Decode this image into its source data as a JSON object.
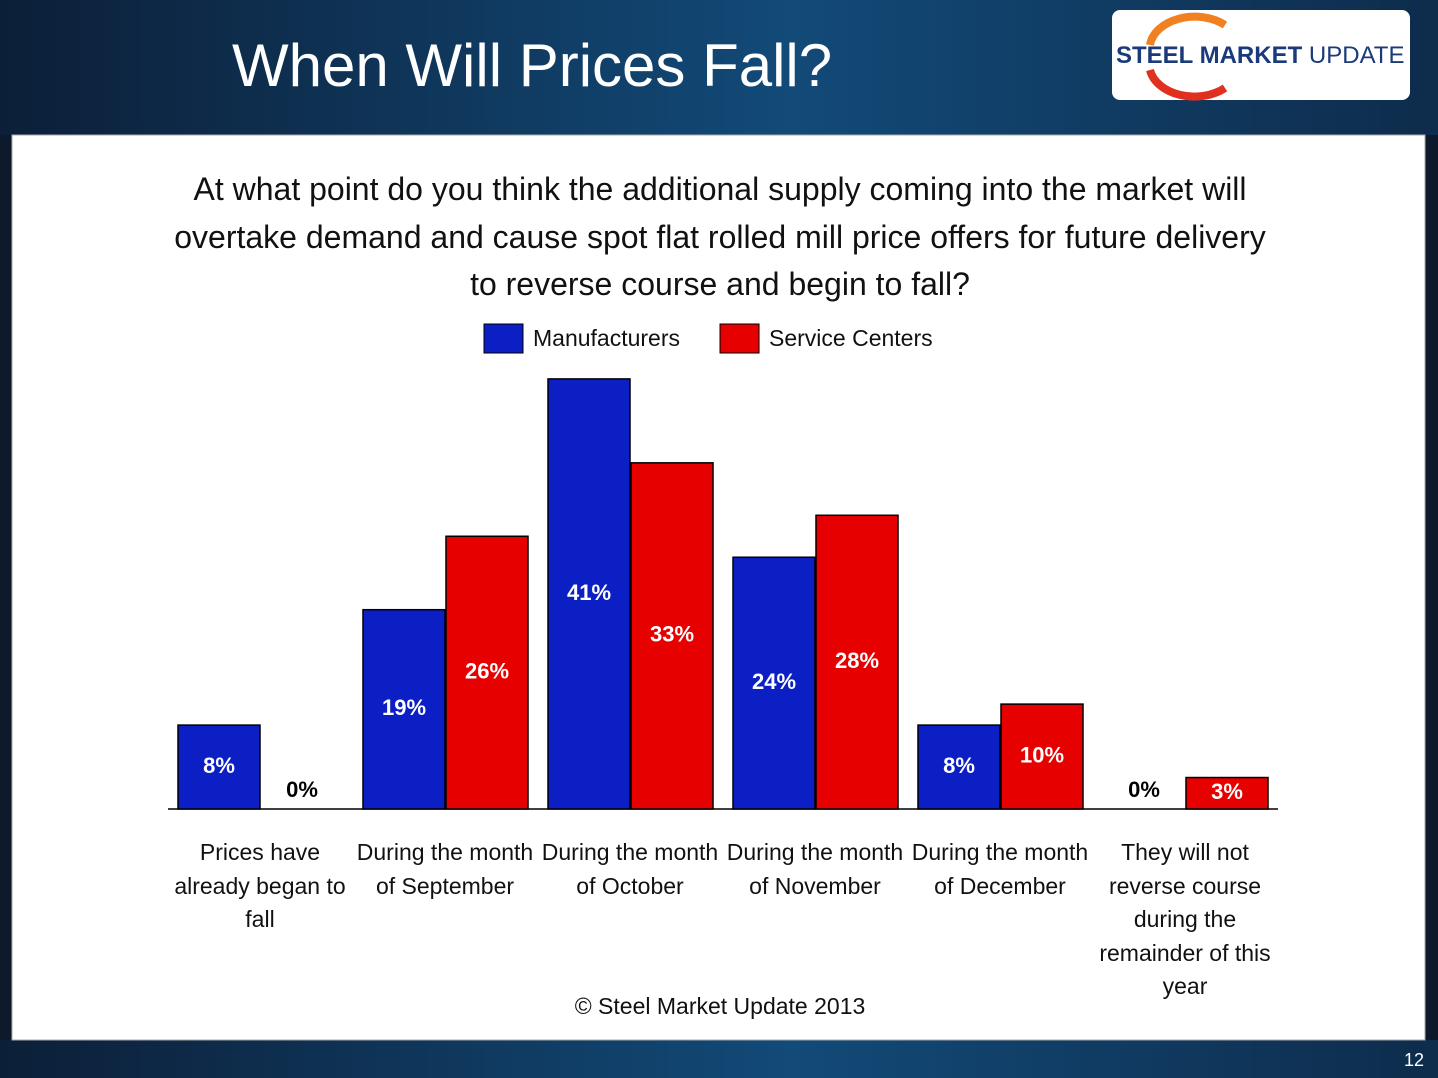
{
  "header": {
    "title": "When Will Prices Fall?",
    "logo": {
      "bold": "STEEL MARKET",
      "light": "UPDATE"
    },
    "slide_number": "12"
  },
  "chart_data": {
    "type": "bar",
    "title": "At what point do you think the additional supply coming into the market will overtake demand and cause spot flat rolled mill price offers for future delivery to reverse course and begin to fall?",
    "categories": [
      "Prices have already began to fall",
      "During the month of September",
      "During the month of October",
      "During the month of November",
      "During the month of December",
      "They will not reverse course during the remainder of this year"
    ],
    "series": [
      {
        "name": "Manufacturers",
        "color": "#0b1fc4",
        "values": [
          8,
          19,
          41,
          24,
          8,
          0
        ],
        "value_labels": [
          "8%",
          "19%",
          "41%",
          "24%",
          "8%",
          "0%"
        ]
      },
      {
        "name": "Service Centers",
        "color": "#e60000",
        "values": [
          0,
          26,
          33,
          28,
          10,
          3
        ],
        "value_labels": [
          "0%",
          "26%",
          "33%",
          "28%",
          "10%",
          "3%"
        ]
      }
    ],
    "legend": "top",
    "footnote": "© Steel Market Update 2013"
  }
}
